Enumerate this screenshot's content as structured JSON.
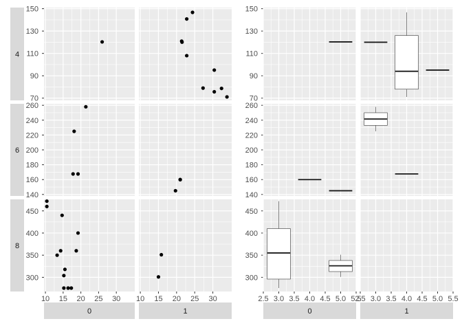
{
  "chart_data": [
    {
      "type": "scatter",
      "facet_rows": [
        "4",
        "6",
        "8"
      ],
      "facet_cols": [
        "0",
        "1"
      ],
      "x_ticks": [
        10,
        15,
        20,
        25,
        30
      ],
      "y_ticks": {
        "4": [
          70,
          90,
          110,
          130,
          150
        ],
        "6": [
          140,
          160,
          180,
          200,
          220,
          240,
          260
        ],
        "8": [
          300,
          350,
          400,
          450
        ]
      },
      "ylim": {
        "4": [
          68,
          151
        ],
        "6": [
          138,
          262
        ],
        "8": [
          268,
          476
        ]
      },
      "xlim": [
        9.6,
        35.2
      ],
      "panels": [
        {
          "row": "4",
          "col": "0",
          "points": [
            [
              26.0,
              120.3
            ]
          ]
        },
        {
          "row": "4",
          "col": "1",
          "points": [
            [
              22.8,
              108
            ],
            [
              24.4,
              146.7
            ],
            [
              22.8,
              140.8
            ],
            [
              32.4,
              78.7
            ],
            [
              30.4,
              75.7
            ],
            [
              33.9,
              71.1
            ],
            [
              27.3,
              79
            ],
            [
              30.4,
              95.1
            ],
            [
              21.5,
              120.1
            ],
            [
              21.4,
              121
            ]
          ]
        },
        {
          "row": "6",
          "col": "0",
          "points": [
            [
              21.4,
              258
            ],
            [
              19.2,
              167.6
            ],
            [
              18.1,
              225
            ],
            [
              17.8,
              167.6
            ]
          ]
        },
        {
          "row": "6",
          "col": "1",
          "points": [
            [
              21.0,
              160
            ],
            [
              21.0,
              160
            ],
            [
              19.7,
              145
            ]
          ]
        },
        {
          "row": "8",
          "col": "0",
          "points": [
            [
              18.7,
              360
            ],
            [
              14.3,
              360
            ],
            [
              16.4,
              275.8
            ],
            [
              17.3,
              275.8
            ],
            [
              15.2,
              275.8
            ],
            [
              10.4,
              472
            ],
            [
              10.4,
              460
            ],
            [
              14.7,
              440
            ],
            [
              15.5,
              318
            ],
            [
              15.2,
              304
            ],
            [
              13.3,
              350
            ],
            [
              19.2,
              400
            ]
          ]
        },
        {
          "row": "8",
          "col": "1",
          "points": [
            [
              15.8,
              351
            ],
            [
              15.0,
              301
            ]
          ]
        }
      ]
    },
    {
      "type": "box",
      "facet_rows": [
        "4",
        "6",
        "8"
      ],
      "facet_cols": [
        "0",
        "1"
      ],
      "x_ticks": [
        "2.5",
        "3.0",
        "3.5",
        "4.0",
        "4.5",
        "5.0",
        "5.5"
      ],
      "y_ticks": {
        "4": [
          70,
          90,
          110,
          130,
          150
        ],
        "6": [
          140,
          160,
          180,
          200,
          220,
          240,
          260
        ],
        "8": [
          300,
          350,
          400,
          450
        ]
      },
      "xlim": [
        2.5,
        5.5
      ],
      "panels": [
        {
          "row": "4",
          "col": "0",
          "boxes": [
            {
              "x": 5,
              "min": 120.3,
              "q1": 120.3,
              "median": 120.3,
              "q3": 120.3,
              "max": 120.3
            }
          ]
        },
        {
          "row": "4",
          "col": "1",
          "boxes": [
            {
              "x": 3,
              "min": 120,
              "q1": 120,
              "median": 120,
              "q3": 120,
              "max": 120
            },
            {
              "x": 4,
              "min": 71.1,
              "q1": 78,
              "median": 94,
              "q3": 126,
              "max": 146.7
            },
            {
              "x": 5,
              "min": 95.1,
              "q1": 95.1,
              "median": 95.1,
              "q3": 95.1,
              "max": 95.1
            }
          ]
        },
        {
          "row": "6",
          "col": "0",
          "boxes": [
            {
              "x": 4,
              "min": 160,
              "q1": 160,
              "median": 160,
              "q3": 160,
              "max": 160
            },
            {
              "x": 5,
              "min": 145,
              "q1": 145,
              "median": 145,
              "q3": 145,
              "max": 145
            }
          ]
        },
        {
          "row": "6",
          "col": "1",
          "boxes": [
            {
              "x": 3,
              "min": 225,
              "q1": 233,
              "median": 241.5,
              "q3": 250,
              "max": 258
            },
            {
              "x": 4,
              "min": 167.6,
              "q1": 167.6,
              "median": 167.6,
              "q3": 167.6,
              "max": 167.6
            }
          ]
        },
        {
          "row": "8",
          "col": "0",
          "boxes": [
            {
              "x": 3,
              "min": 275.8,
              "q1": 296,
              "median": 355,
              "q3": 410,
              "max": 472
            },
            {
              "x": 5,
              "min": 301,
              "q1": 313,
              "median": 326,
              "q3": 338,
              "max": 351
            }
          ]
        },
        {
          "row": "8",
          "col": "1",
          "boxes": []
        }
      ]
    }
  ]
}
